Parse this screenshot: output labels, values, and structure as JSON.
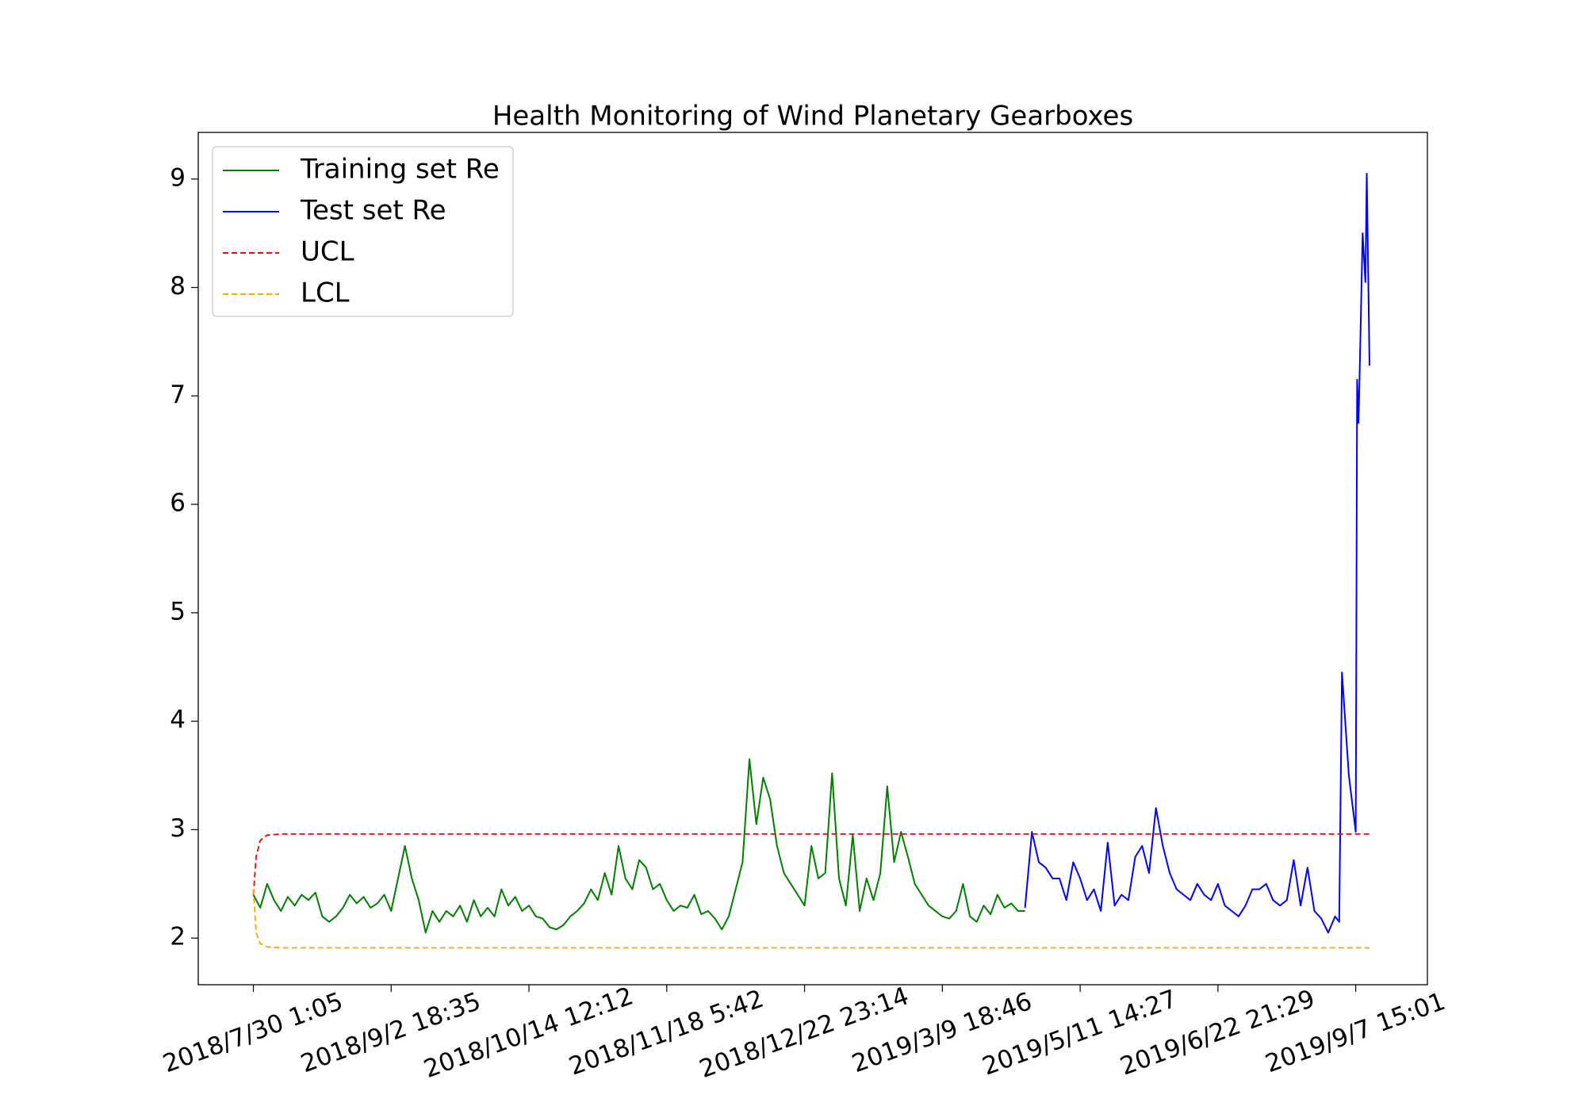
{
  "chart_data": {
    "type": "line",
    "title": "Health Monitoring of Wind Planetary Gearboxes",
    "legend": "upper left",
    "xlim": [
      -0.4,
      8.52
    ],
    "ylim": [
      1.57,
      9.43
    ],
    "yticks": [
      2,
      3,
      4,
      5,
      6,
      7,
      8,
      9
    ],
    "xticks": [
      {
        "value": 0,
        "label": "2018/7/30 1:05"
      },
      {
        "value": 1,
        "label": "2018/9/2 18:35"
      },
      {
        "value": 2,
        "label": "2018/10/14 12:12"
      },
      {
        "value": 3,
        "label": "2018/11/18 5:42"
      },
      {
        "value": 4,
        "label": "2018/12/22 23:14"
      },
      {
        "value": 5,
        "label": "2019/3/9 18:46"
      },
      {
        "value": 6,
        "label": "2019/5/11 14:27"
      },
      {
        "value": 7,
        "label": "2019/6/22 21:29"
      },
      {
        "value": 8,
        "label": "2019/9/7 15:01"
      }
    ],
    "series": [
      {
        "name": "Training set Re",
        "color": "green",
        "style": "solid",
        "x": [
          0,
          0.05,
          0.1,
          0.15,
          0.2,
          0.25,
          0.3,
          0.35,
          0.4,
          0.45,
          0.5,
          0.55,
          0.6,
          0.65,
          0.7,
          0.75,
          0.8,
          0.85,
          0.9,
          0.95,
          1.0,
          1.05,
          1.1,
          1.15,
          1.2,
          1.25,
          1.3,
          1.35,
          1.4,
          1.45,
          1.5,
          1.55,
          1.6,
          1.65,
          1.7,
          1.75,
          1.8,
          1.85,
          1.9,
          1.95,
          2.0,
          2.05,
          2.1,
          2.15,
          2.2,
          2.25,
          2.3,
          2.35,
          2.4,
          2.45,
          2.5,
          2.55,
          2.6,
          2.65,
          2.7,
          2.75,
          2.8,
          2.85,
          2.9,
          2.95,
          3.0,
          3.05,
          3.1,
          3.15,
          3.2,
          3.25,
          3.3,
          3.35,
          3.4,
          3.45,
          3.5,
          3.55,
          3.6,
          3.65,
          3.7,
          3.75,
          3.8,
          3.85,
          3.9,
          3.95,
          4.0,
          4.05,
          4.1,
          4.15,
          4.2,
          4.25,
          4.3,
          4.35,
          4.4,
          4.45,
          4.5,
          4.55,
          4.6,
          4.65,
          4.7,
          4.75,
          4.8,
          4.85,
          4.9,
          4.95,
          5.0,
          5.05,
          5.1,
          5.15,
          5.2,
          5.25,
          5.3,
          5.35,
          5.4,
          5.45,
          5.5,
          5.55,
          5.6
        ],
        "values": [
          2.4,
          2.28,
          2.5,
          2.35,
          2.25,
          2.38,
          2.3,
          2.4,
          2.35,
          2.42,
          2.2,
          2.15,
          2.2,
          2.28,
          2.4,
          2.32,
          2.38,
          2.28,
          2.32,
          2.4,
          2.25,
          2.55,
          2.85,
          2.55,
          2.35,
          2.05,
          2.25,
          2.15,
          2.25,
          2.2,
          2.3,
          2.15,
          2.35,
          2.2,
          2.28,
          2.2,
          2.45,
          2.3,
          2.38,
          2.25,
          2.3,
          2.2,
          2.18,
          2.1,
          2.08,
          2.12,
          2.2,
          2.25,
          2.32,
          2.45,
          2.35,
          2.6,
          2.4,
          2.85,
          2.55,
          2.45,
          2.72,
          2.65,
          2.45,
          2.5,
          2.35,
          2.25,
          2.3,
          2.28,
          2.4,
          2.22,
          2.25,
          2.18,
          2.08,
          2.2,
          2.45,
          2.7,
          3.65,
          3.05,
          3.48,
          3.28,
          2.85,
          2.6,
          2.5,
          2.4,
          2.3,
          2.85,
          2.55,
          2.6,
          3.52,
          2.55,
          2.3,
          2.95,
          2.25,
          2.55,
          2.35,
          2.6,
          3.4,
          2.7,
          2.98,
          2.75,
          2.5,
          2.4,
          2.3,
          2.25,
          2.2,
          2.18,
          2.25,
          2.5,
          2.2,
          2.15,
          2.3,
          2.22,
          2.4,
          2.28,
          2.32,
          2.25,
          2.25
        ]
      },
      {
        "name": "Test set Re",
        "color": "blue",
        "style": "solid",
        "x": [
          5.6,
          5.65,
          5.7,
          5.75,
          5.8,
          5.85,
          5.9,
          5.95,
          6.0,
          6.05,
          6.1,
          6.15,
          6.2,
          6.25,
          6.3,
          6.35,
          6.4,
          6.45,
          6.5,
          6.55,
          6.6,
          6.65,
          6.7,
          6.75,
          6.8,
          6.85,
          6.9,
          6.95,
          7.0,
          7.05,
          7.1,
          7.15,
          7.2,
          7.25,
          7.3,
          7.35,
          7.4,
          7.45,
          7.5,
          7.55,
          7.6,
          7.65,
          7.7,
          7.75,
          7.8,
          7.85,
          7.88,
          7.9,
          7.95,
          8.0,
          8.01,
          8.02,
          8.03,
          8.05,
          8.07,
          8.08,
          8.1
        ],
        "values": [
          2.28,
          2.98,
          2.7,
          2.65,
          2.55,
          2.55,
          2.35,
          2.7,
          2.55,
          2.35,
          2.45,
          2.25,
          2.88,
          2.3,
          2.4,
          2.35,
          2.75,
          2.85,
          2.6,
          3.2,
          2.85,
          2.6,
          2.45,
          2.4,
          2.35,
          2.5,
          2.4,
          2.35,
          2.5,
          2.3,
          2.25,
          2.2,
          2.3,
          2.45,
          2.45,
          2.5,
          2.35,
          2.3,
          2.35,
          2.72,
          2.3,
          2.65,
          2.25,
          2.18,
          2.05,
          2.2,
          2.15,
          4.45,
          3.5,
          2.98,
          7.15,
          6.75,
          7.3,
          8.5,
          8.05,
          9.05,
          7.28
        ]
      },
      {
        "name": "UCL",
        "color": "red",
        "style": "dashed",
        "x": [
          0,
          0.02,
          0.05,
          0.1,
          0.2,
          8.1
        ],
        "values": [
          2.4,
          2.75,
          2.9,
          2.95,
          2.96,
          2.96
        ]
      },
      {
        "name": "LCL",
        "color": "orange",
        "style": "dashed",
        "x": [
          0,
          0.02,
          0.05,
          0.1,
          0.2,
          8.1
        ],
        "values": [
          2.45,
          2.05,
          1.95,
          1.92,
          1.91,
          1.91
        ]
      }
    ]
  }
}
